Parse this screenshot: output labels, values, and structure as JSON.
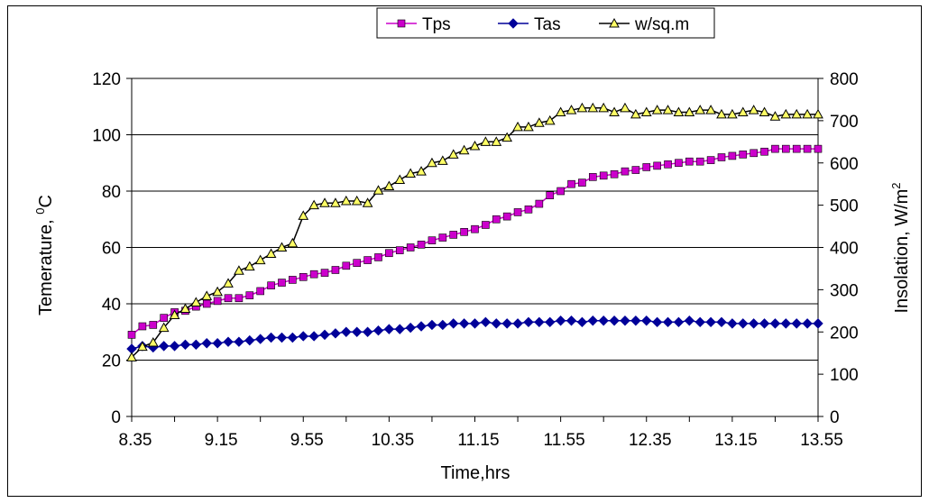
{
  "chart_data": {
    "type": "line",
    "ylabel": "Temerature, ",
    "ylabel_sup": "0",
    "ylabel_tail": "C",
    "y2label": "Insolation, W/m",
    "y2label_sup": "2",
    "xlabel": "Time,hrs",
    "ylim": [
      0,
      120
    ],
    "y2lim": [
      0,
      800
    ],
    "yticks": [
      0,
      20,
      40,
      60,
      80,
      100,
      120
    ],
    "y2ticks": [
      0,
      100,
      200,
      300,
      400,
      500,
      600,
      700,
      800
    ],
    "xtick_labels": [
      "8.35",
      "9.15",
      "9.55",
      "10.35",
      "11.15",
      "11.55",
      "12.35",
      "13.15",
      "13.55"
    ],
    "legend_position": "top-center",
    "series": [
      {
        "name": "Tps",
        "axis": "left",
        "color": "#cc00cc",
        "marker": "square",
        "values": [
          29,
          32,
          32.5,
          35,
          37,
          37.5,
          39,
          40,
          41,
          42,
          42,
          43,
          44.5,
          46.5,
          47.5,
          48.5,
          49.5,
          50.5,
          51,
          52,
          53.5,
          54.5,
          55.5,
          56.5,
          58,
          59,
          60,
          61,
          62.5,
          63.5,
          64.5,
          65.5,
          66.5,
          68,
          70,
          71,
          72.5,
          73.5,
          75.5,
          78.5,
          80,
          82.5,
          83,
          85,
          85.5,
          86,
          87,
          87.5,
          88.5,
          89,
          89.5,
          90,
          90.5,
          90.5,
          91,
          92,
          92.5,
          93,
          93.5,
          94,
          95,
          95,
          95,
          95,
          95
        ]
      },
      {
        "name": "Tas",
        "axis": "left",
        "color": "#000099",
        "marker": "diamond",
        "values": [
          24,
          25,
          24.5,
          25,
          25,
          25.5,
          25.5,
          26,
          26,
          26.5,
          26.5,
          27,
          27.5,
          28,
          28,
          28,
          28.5,
          28.5,
          29,
          29.5,
          30,
          30,
          30,
          30.5,
          31,
          31,
          31.5,
          32,
          32.5,
          32.5,
          33,
          33,
          33,
          33.5,
          33,
          33,
          33,
          33.5,
          33.5,
          33.5,
          34,
          34,
          33.5,
          34,
          34,
          34,
          34,
          34,
          34,
          33.5,
          33.5,
          33.5,
          34,
          33.5,
          33.5,
          33.5,
          33,
          33,
          33,
          33,
          33,
          33,
          33,
          33,
          33
        ]
      },
      {
        "name": "w/sq.m",
        "axis": "right",
        "color": "#000000",
        "marker": "triangle",
        "marker_fill": "#ffff66",
        "values": [
          140,
          165,
          175,
          210,
          240,
          255,
          270,
          285,
          295,
          315,
          345,
          355,
          370,
          385,
          400,
          410,
          475,
          500,
          505,
          505,
          510,
          510,
          505,
          535,
          545,
          560,
          575,
          580,
          600,
          605,
          620,
          630,
          640,
          650,
          650,
          660,
          685,
          685,
          695,
          700,
          720,
          725,
          730,
          730,
          730,
          720,
          730,
          715,
          720,
          725,
          725,
          720,
          720,
          725,
          725,
          715,
          715,
          720,
          725,
          720,
          710,
          715,
          715,
          715,
          715
        ]
      }
    ]
  }
}
